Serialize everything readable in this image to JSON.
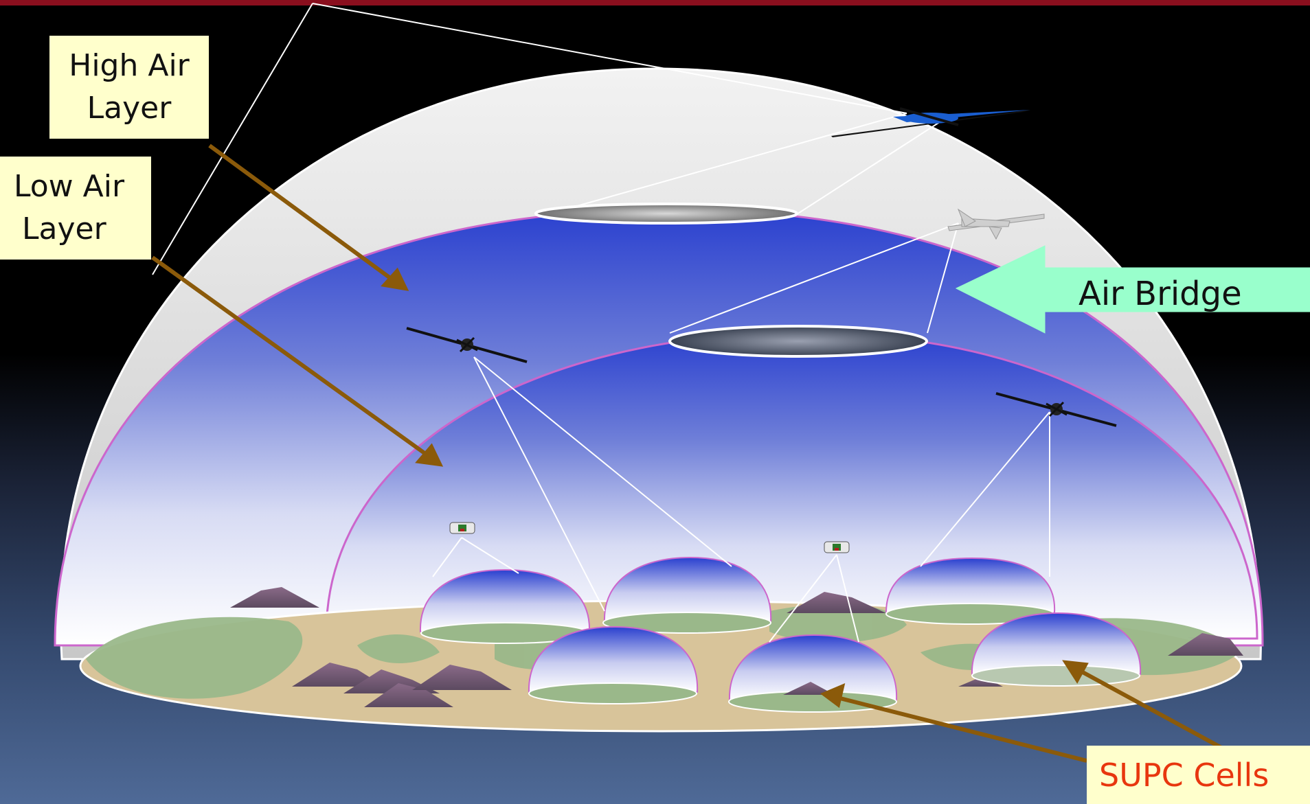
{
  "labels": {
    "high_air": [
      "High Air",
      "Layer"
    ],
    "low_air": [
      "Low Air",
      "Layer"
    ],
    "air_bridge": "Air Bridge",
    "supc_cells": "SUPC Cells"
  },
  "colors": {
    "title_bar": "#8a0f1e",
    "label_bg": "#ffffcc",
    "arrow_brown": "#8b5a0a",
    "air_bridge_arrow": "#99ffcc",
    "supc_text": "#e8360e",
    "dome_outer": "#e6e6e6",
    "sky_blue": "#2a44cc",
    "dome_outline": "#cc66cc"
  },
  "icons": [
    "satellite-icon",
    "drone-icon",
    "blimp-icon",
    "mountain-icon",
    "glider-icon"
  ]
}
